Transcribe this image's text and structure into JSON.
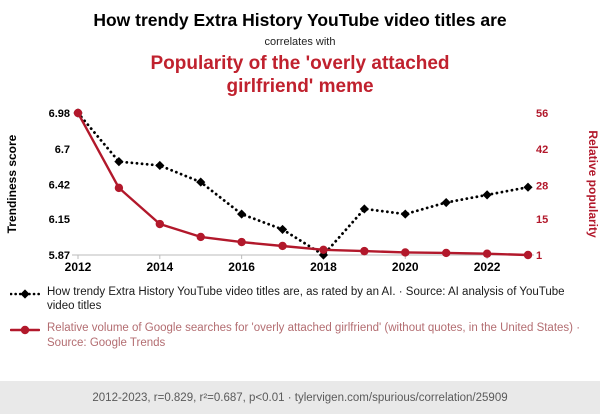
{
  "header": {
    "title": "How trendy Extra History YouTube video titles are",
    "connector": "correlates with",
    "subtitle": "Popularity of the 'overly attached girlfriend' meme"
  },
  "chart_data": {
    "type": "line",
    "x": [
      2012,
      2013,
      2014,
      2015,
      2016,
      2017,
      2018,
      2019,
      2020,
      2021,
      2022,
      2023
    ],
    "x_ticks": [
      2012,
      2014,
      2016,
      2018,
      2020,
      2022
    ],
    "series": [
      {
        "name": "How trendy Extra History YouTube video titles are",
        "axis": "left",
        "color": "#000000",
        "line_style": "dotted",
        "marker": "diamond",
        "values": [
          6.98,
          6.6,
          6.57,
          6.44,
          6.19,
          6.07,
          5.87,
          6.23,
          6.19,
          6.28,
          6.34,
          6.4
        ]
      },
      {
        "name": "Relative volume of Google searches for 'overly attached girlfriend'",
        "axis": "right",
        "color": "#b2182b",
        "line_style": "solid",
        "marker": "circle",
        "values": [
          56,
          27,
          13,
          8,
          6,
          4.5,
          3,
          2.5,
          2,
          1.8,
          1.5,
          1
        ]
      }
    ],
    "left_axis": {
      "label": "Trendiness score",
      "ticks": [
        "6.98",
        "6.7",
        "6.42",
        "6.15",
        "5.87"
      ],
      "range": [
        5.87,
        6.98
      ]
    },
    "right_axis": {
      "label": "Relative popularity",
      "ticks": [
        "56",
        "42",
        "28",
        "15",
        "1"
      ],
      "range": [
        1,
        56
      ]
    },
    "grid": false,
    "legend_position": "below"
  },
  "legend": [
    {
      "text": "How trendy Extra History YouTube video titles are, as rated by an AI. · Source: AI analysis of YouTube video titles"
    },
    {
      "text": "Relative volume of Google searches for 'overly attached girlfriend' (without quotes, in the United States) · Source: Google Trends"
    }
  ],
  "footer": {
    "text": "2012-2023, r=0.829, r²=0.687, p<0.01 · tylervigen.com/spurious/correlation/25909"
  },
  "theme": {
    "accent_red": "#c0212e",
    "series_red": "#b2182b",
    "axis_gray": "#bbbbbb",
    "footer_bg": "#e9e9e9",
    "footer_text": "#5a5a5a",
    "legend_text_dark": "#1a1a1a",
    "legend_text_red": "#b36d71"
  }
}
